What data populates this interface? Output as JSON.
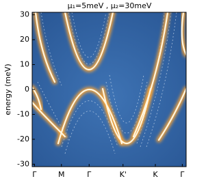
{
  "chart_data": {
    "type": "heatmap",
    "title": "μ₁=5meV , μ₂=30meV",
    "ylabel": "energy (meV)",
    "categories": [
      "Γ",
      "M",
      "Γ",
      "K'",
      "K",
      "Γ"
    ],
    "ylim": [
      -31,
      31
    ],
    "yticks": [
      -30,
      -20,
      -10,
      0,
      10,
      20,
      30
    ]
  }
}
